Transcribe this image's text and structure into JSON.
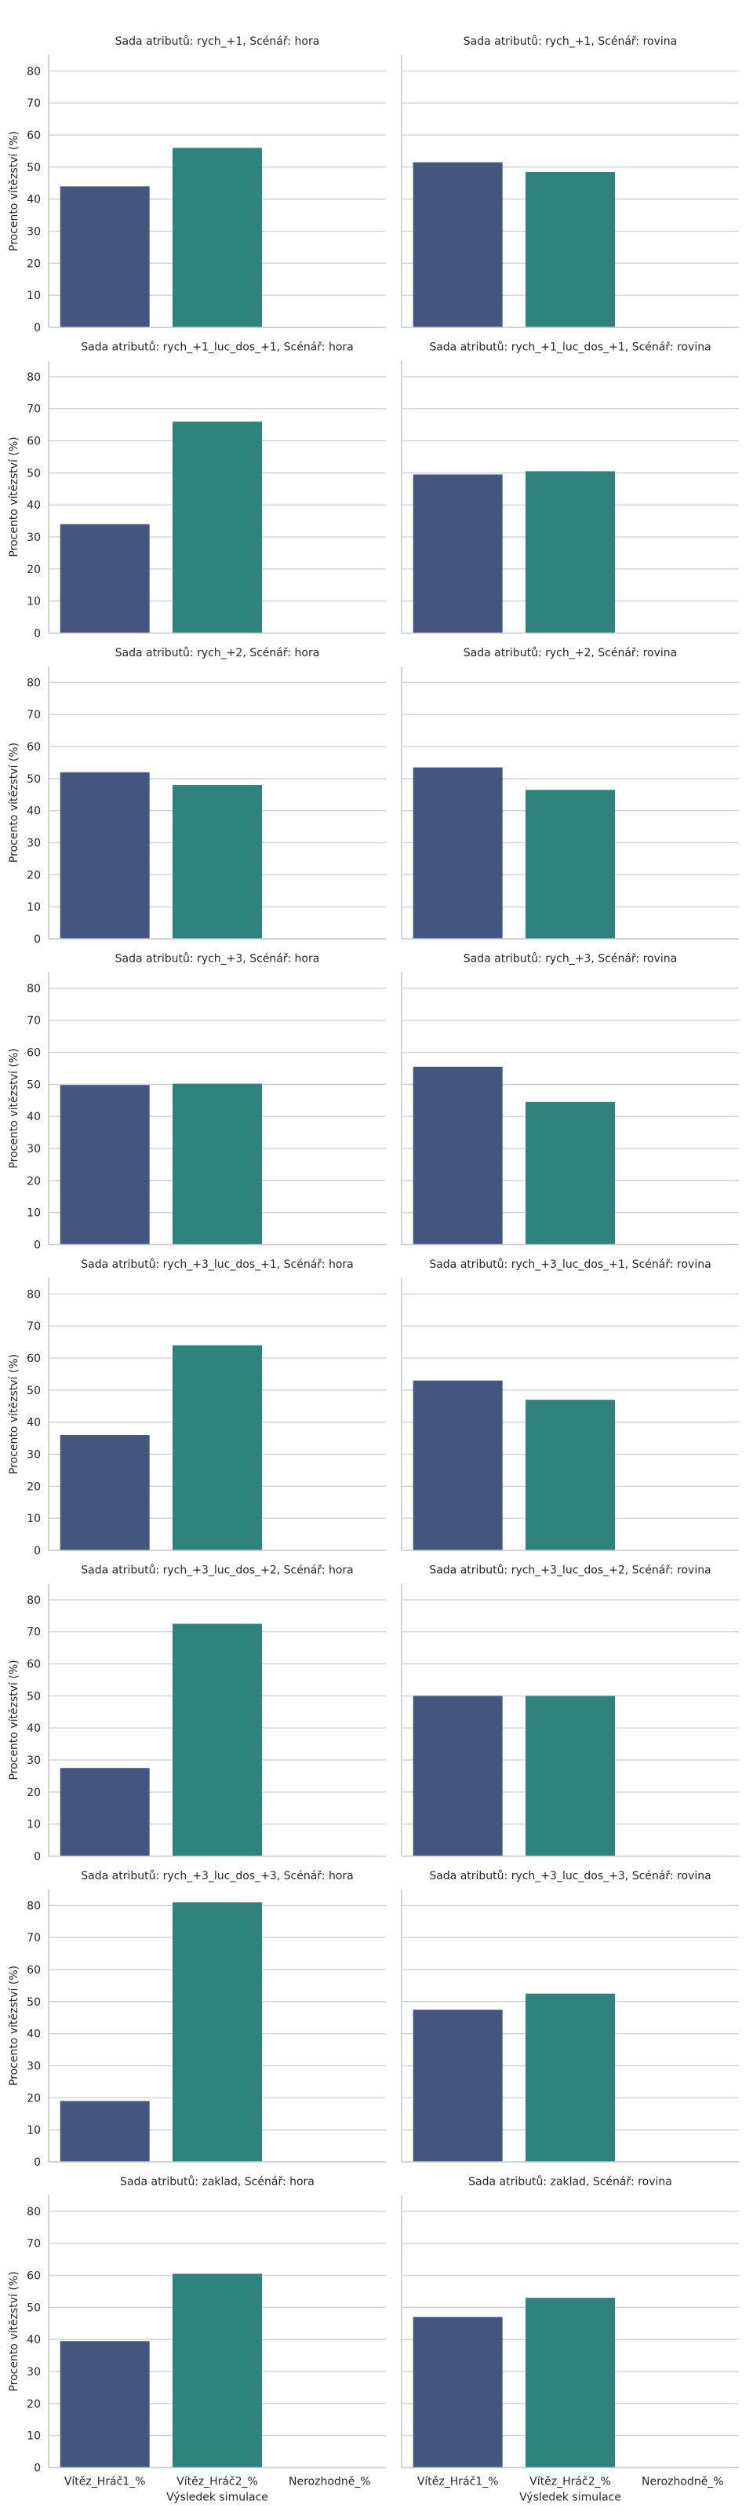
{
  "chart_data": {
    "type": "bar",
    "ylabel": "Procento vítězství (%)",
    "xlabel": "Výsledek simulace",
    "categories": [
      "Vítěz_Hráč1_%",
      "Vítěz_Hráč2_%",
      "Nerozhodně_%"
    ],
    "ylim": [
      0,
      85
    ],
    "yticks": [
      0,
      10,
      20,
      30,
      40,
      50,
      60,
      70,
      80
    ],
    "colors": [
      "#455681",
      "#2e837c",
      "#cccccc"
    ],
    "panels": [
      {
        "title": "Sada atributů: rych_+1, Scénář: hora",
        "values": [
          44,
          56,
          0
        ]
      },
      {
        "title": "Sada atributů: rych_+1, Scénář: rovina",
        "values": [
          51.5,
          48.5,
          0
        ]
      },
      {
        "title": "Sada atributů: rych_+1_luc_dos_+1, Scénář: hora",
        "values": [
          34,
          66,
          0
        ]
      },
      {
        "title": "Sada atributů: rych_+1_luc_dos_+1, Scénář: rovina",
        "values": [
          49.5,
          50.5,
          0
        ]
      },
      {
        "title": "Sada atributů: rych_+2, Scénář: hora",
        "values": [
          52,
          48,
          0
        ]
      },
      {
        "title": "Sada atributů: rych_+2, Scénář: rovina",
        "values": [
          53.5,
          46.5,
          0
        ]
      },
      {
        "title": "Sada atributů: rych_+3, Scénář: hora",
        "values": [
          49.8,
          50.2,
          0
        ]
      },
      {
        "title": "Sada atributů: rych_+3, Scénář: rovina",
        "values": [
          55.5,
          44.5,
          0
        ]
      },
      {
        "title": "Sada atributů: rych_+3_luc_dos_+1, Scénář: hora",
        "values": [
          36,
          64,
          0
        ]
      },
      {
        "title": "Sada atributů: rych_+3_luc_dos_+1, Scénář: rovina",
        "values": [
          53,
          47,
          0
        ]
      },
      {
        "title": "Sada atributů: rych_+3_luc_dos_+2, Scénář: hora",
        "values": [
          27.5,
          72.5,
          0
        ]
      },
      {
        "title": "Sada atributů: rych_+3_luc_dos_+2, Scénář: rovina",
        "values": [
          50,
          50,
          0
        ]
      },
      {
        "title": "Sada atributů: rych_+3_luc_dos_+3, Scénář: hora",
        "values": [
          19,
          81,
          0
        ]
      },
      {
        "title": "Sada atributů: rych_+3_luc_dos_+3, Scénář: rovina",
        "values": [
          47.5,
          52.5,
          0
        ]
      },
      {
        "title": "Sada atributů: zaklad, Scénář: hora",
        "values": [
          39.5,
          60.5,
          0
        ]
      },
      {
        "title": "Sada atributů: zaklad, Scénář: rovina",
        "values": [
          47,
          53,
          0
        ]
      }
    ]
  }
}
